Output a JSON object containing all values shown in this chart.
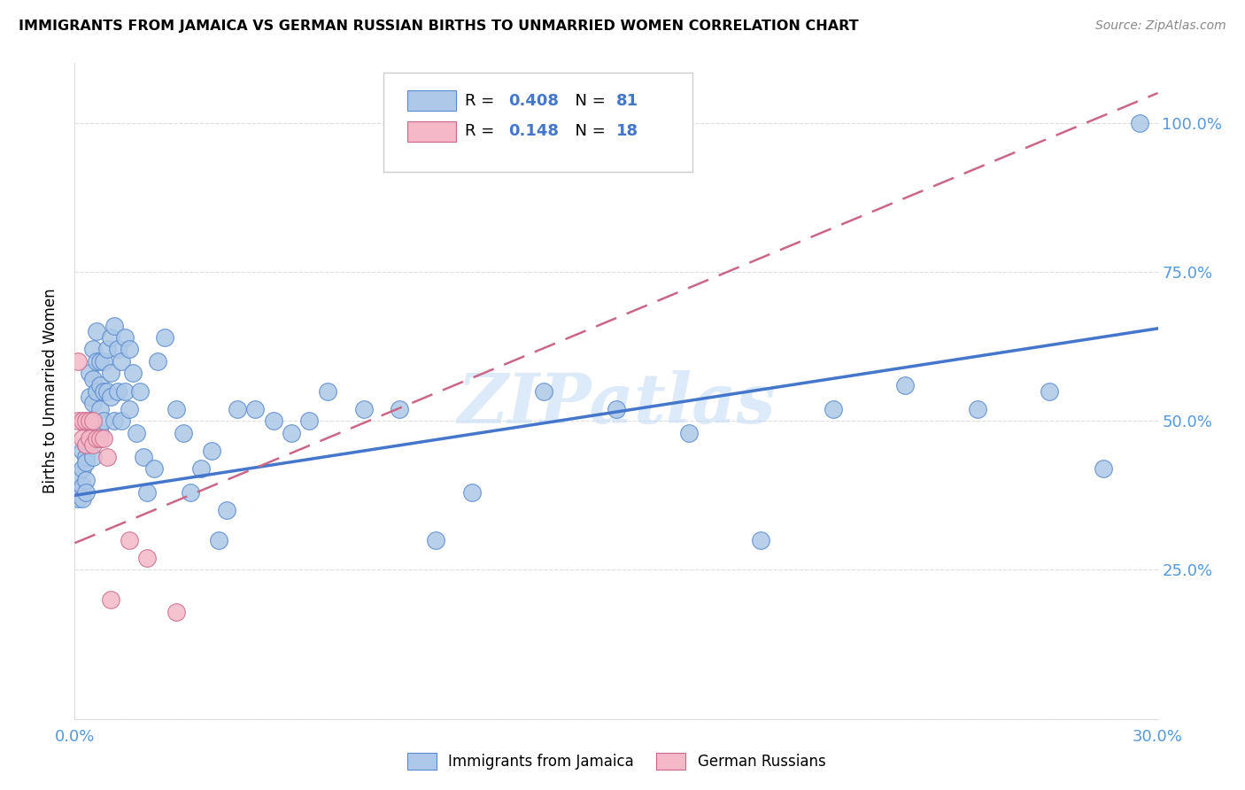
{
  "title": "IMMIGRANTS FROM JAMAICA VS GERMAN RUSSIAN BIRTHS TO UNMARRIED WOMEN CORRELATION CHART",
  "source": "Source: ZipAtlas.com",
  "ylabel_label": "Births to Unmarried Women",
  "x_min": 0.0,
  "x_max": 0.3,
  "y_min": 0.0,
  "y_max": 1.1,
  "x_ticks": [
    0.0,
    0.05,
    0.1,
    0.15,
    0.2,
    0.25,
    0.3
  ],
  "y_ticks": [
    0.0,
    0.25,
    0.5,
    0.75,
    1.0
  ],
  "blue_R": 0.408,
  "blue_N": 81,
  "pink_R": 0.148,
  "pink_N": 18,
  "blue_color": "#adc8e8",
  "blue_edge_color": "#5588cc",
  "blue_line_color": "#4477cc",
  "pink_color": "#f4b8c8",
  "pink_edge_color": "#cc6688",
  "pink_line_color": "#cc6688",
  "watermark": "ZIPatlas",
  "grid_color": "#dddddd",
  "tick_color": "#5599dd",
  "blue_line_y0": 0.375,
  "blue_line_y1": 0.655,
  "pink_line_y0": 0.295,
  "pink_line_y1": 1.05,
  "blue_scatter_x": [
    0.001,
    0.001,
    0.001,
    0.002,
    0.002,
    0.002,
    0.002,
    0.003,
    0.003,
    0.003,
    0.003,
    0.003,
    0.004,
    0.004,
    0.004,
    0.004,
    0.005,
    0.005,
    0.005,
    0.005,
    0.005,
    0.006,
    0.006,
    0.006,
    0.007,
    0.007,
    0.007,
    0.007,
    0.008,
    0.008,
    0.008,
    0.009,
    0.009,
    0.01,
    0.01,
    0.01,
    0.011,
    0.011,
    0.012,
    0.012,
    0.013,
    0.013,
    0.014,
    0.014,
    0.015,
    0.015,
    0.016,
    0.017,
    0.018,
    0.019,
    0.02,
    0.022,
    0.023,
    0.025,
    0.028,
    0.03,
    0.032,
    0.035,
    0.038,
    0.04,
    0.042,
    0.045,
    0.05,
    0.055,
    0.06,
    0.065,
    0.07,
    0.08,
    0.09,
    0.1,
    0.11,
    0.13,
    0.15,
    0.17,
    0.19,
    0.21,
    0.23,
    0.25,
    0.27,
    0.285,
    0.295
  ],
  "blue_scatter_y": [
    0.38,
    0.41,
    0.37,
    0.42,
    0.39,
    0.45,
    0.37,
    0.44,
    0.4,
    0.43,
    0.46,
    0.38,
    0.58,
    0.54,
    0.5,
    0.46,
    0.62,
    0.57,
    0.53,
    0.48,
    0.44,
    0.65,
    0.6,
    0.55,
    0.6,
    0.56,
    0.52,
    0.48,
    0.6,
    0.55,
    0.5,
    0.62,
    0.55,
    0.64,
    0.58,
    0.54,
    0.66,
    0.5,
    0.62,
    0.55,
    0.6,
    0.5,
    0.64,
    0.55,
    0.62,
    0.52,
    0.58,
    0.48,
    0.55,
    0.44,
    0.38,
    0.42,
    0.6,
    0.64,
    0.52,
    0.48,
    0.38,
    0.42,
    0.45,
    0.3,
    0.35,
    0.52,
    0.52,
    0.5,
    0.48,
    0.5,
    0.55,
    0.52,
    0.52,
    0.3,
    0.38,
    0.55,
    0.52,
    0.48,
    0.3,
    0.52,
    0.56,
    0.52,
    0.55,
    0.42,
    1.0
  ],
  "pink_scatter_x": [
    0.001,
    0.001,
    0.002,
    0.002,
    0.003,
    0.003,
    0.004,
    0.004,
    0.005,
    0.005,
    0.006,
    0.007,
    0.008,
    0.009,
    0.01,
    0.015,
    0.02,
    0.028
  ],
  "pink_scatter_y": [
    0.6,
    0.5,
    0.5,
    0.47,
    0.5,
    0.46,
    0.5,
    0.47,
    0.5,
    0.46,
    0.47,
    0.47,
    0.47,
    0.44,
    0.2,
    0.3,
    0.27,
    0.18
  ]
}
